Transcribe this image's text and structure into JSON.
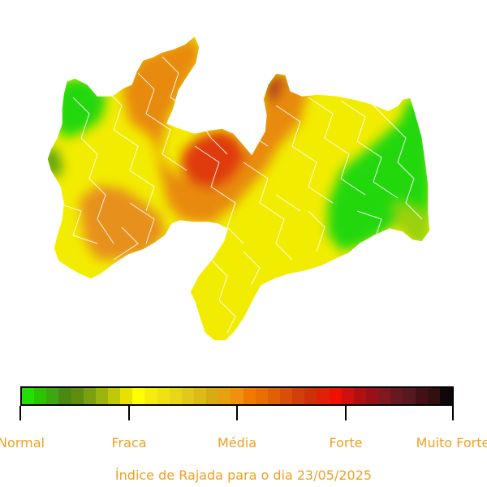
{
  "legend": {
    "labels": [
      "Normal",
      "Fraca",
      "Média",
      "Forte",
      "Muito Forte"
    ],
    "colors": [
      "#22e000",
      "#2cc400",
      "#3aa80e",
      "#4b8a10",
      "#5e8e10",
      "#7aa010",
      "#9cb40e",
      "#c0c80a",
      "#e8e000",
      "#ffff00",
      "#f6ec10",
      "#eee214",
      "#e8d618",
      "#e2c81c",
      "#dcba18",
      "#d8aa14",
      "#e6a010",
      "#f09010",
      "#f07a00",
      "#e87000",
      "#e06008",
      "#d85008",
      "#d04008",
      "#d03008",
      "#e02008",
      "#f01000",
      "#d01010",
      "#b01010",
      "#981018",
      "#801820",
      "#6a1820",
      "#581820",
      "#441018",
      "#301010",
      "#100808"
    ]
  },
  "caption": "Índice de Rajada para o dia 23/05/2025",
  "map": {
    "colors": {
      "green": "#22d80a",
      "yellow": "#f2ec00",
      "orange": "#e88a10",
      "red": "#e03a10",
      "border": "#ffffff"
    }
  }
}
